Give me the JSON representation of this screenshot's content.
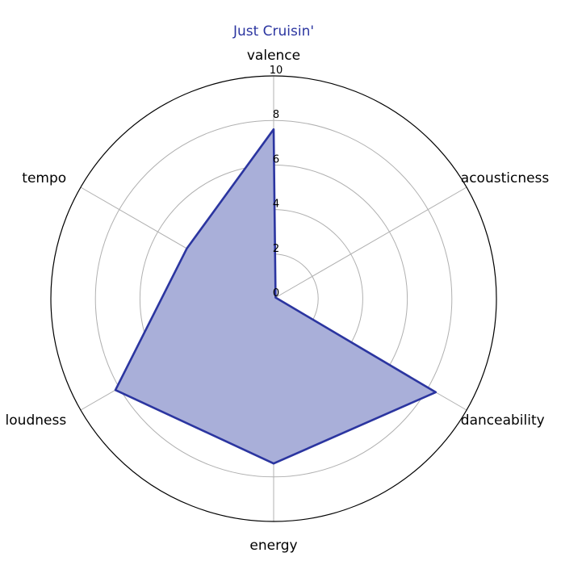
{
  "chart_data": {
    "type": "radar",
    "title": "Just Cruisin'",
    "title_color": "#2b35a0",
    "axes": [
      "valence",
      "acousticness",
      "danceability",
      "energy",
      "loudness",
      "tempo"
    ],
    "series": [
      {
        "values": [
          7.6,
          0.1,
          8.4,
          7.4,
          8.2,
          4.5
        ],
        "line_color": "#2b35a0",
        "fill_color": "#a9afd9"
      }
    ],
    "rlim": [
      0,
      10
    ],
    "rticks": [
      "0",
      "2",
      "4",
      "6",
      "8",
      "10"
    ],
    "grid": true
  }
}
